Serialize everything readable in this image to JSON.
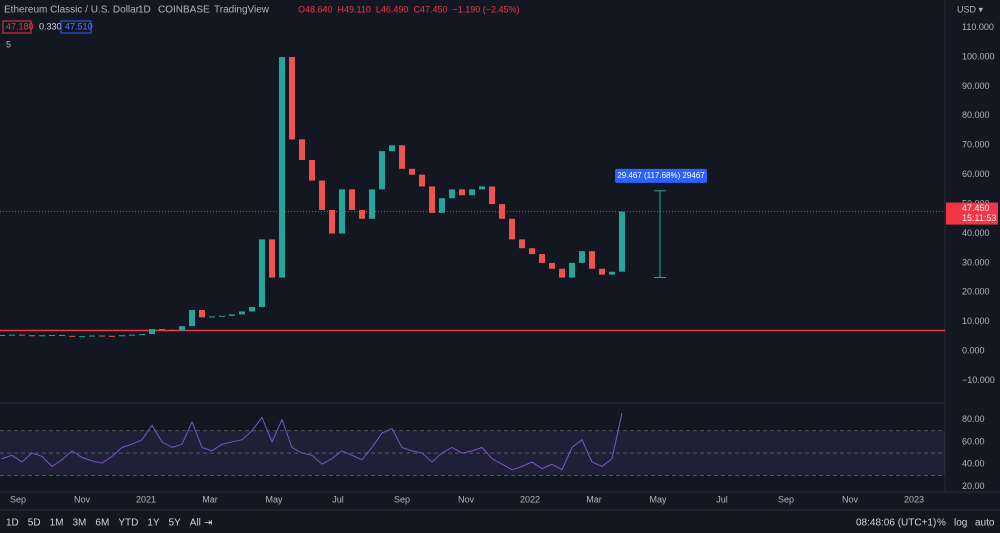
{
  "header": {
    "symbol": "Ethereum Classic / U.S. Dollar",
    "interval": "1D",
    "exchange": "COINBASE",
    "source": "TradingView",
    "ohlc": [
      "O48.640",
      "H49.110",
      "L46.490",
      "C47.450",
      "−1.190 (−2.45%)"
    ],
    "bid": "47.180",
    "spread": "0.330",
    "ask": "47.510",
    "indicator_count": "5",
    "currency": "USD ▾"
  },
  "chart_data": [
    {
      "type": "candlestick",
      "close": [
        5.5,
        5.6,
        5.4,
        5.3,
        5.4,
        5.5,
        5.2,
        5.0,
        5.1,
        5.3,
        5.2,
        5.1,
        5.4,
        5.6,
        5.8,
        7.5,
        7.2,
        7.0,
        8.5,
        14,
        11.5,
        11.8,
        12.0,
        12.5,
        13.5,
        15,
        38,
        25,
        100,
        72,
        65,
        58,
        48,
        40,
        55,
        48,
        45,
        55,
        68,
        70,
        62,
        60,
        56,
        47,
        52,
        55,
        53,
        55,
        56,
        50,
        45,
        38,
        35,
        33,
        30,
        28,
        25,
        30,
        34,
        28,
        26,
        27,
        47.45
      ],
      "colors": {
        "up": "#26a69a",
        "down": "#ef5350"
      },
      "ylim": [
        -17.3,
        119.4
      ],
      "yticks": [
        {
          "value": 110,
          "label": "110.000"
        },
        {
          "value": 100,
          "label": "100.000"
        },
        {
          "value": 90,
          "label": "90.000"
        },
        {
          "value": 80,
          "label": "80.000"
        },
        {
          "value": 70,
          "label": "70.000"
        },
        {
          "value": 60,
          "label": "60.000"
        },
        {
          "value": 50,
          "label": "50.000"
        },
        {
          "value": 40,
          "label": "40.000"
        },
        {
          "value": 30,
          "label": "30.000"
        },
        {
          "value": 20,
          "label": "20.000"
        },
        {
          "value": 10,
          "label": "10.000"
        },
        {
          "value": 0,
          "label": "0.000"
        },
        {
          "value": -10,
          "label": "−10.000"
        }
      ],
      "last_price": {
        "value": 47.45,
        "label": "47.450"
      },
      "countdown": "15:11:53",
      "hline": {
        "value": 7,
        "color": "#f23645"
      },
      "measure": {
        "from": 25.04,
        "to": 54.51,
        "label": "29.467 (117.68%) 29467"
      }
    },
    {
      "type": "line",
      "values": [
        45,
        48,
        42,
        50,
        47,
        38,
        44,
        52,
        46,
        43,
        41,
        47,
        55,
        58,
        62,
        75,
        60,
        55,
        58,
        78,
        55,
        52,
        58,
        60,
        62,
        70,
        82,
        60,
        80,
        55,
        50,
        48,
        40,
        45,
        52,
        48,
        44,
        55,
        68,
        72,
        55,
        52,
        50,
        42,
        50,
        55,
        50,
        52,
        55,
        45,
        40,
        35,
        38,
        42,
        36,
        40,
        35,
        55,
        62,
        42,
        38,
        45,
        86
      ],
      "color": "#7e57c2",
      "ylim": [
        15,
        95
      ],
      "yticks": [
        {
          "value": 80,
          "label": "80.00"
        },
        {
          "value": 60,
          "label": "60.00"
        },
        {
          "value": 40,
          "label": "40.00"
        },
        {
          "value": 20,
          "label": "20.00"
        }
      ],
      "bands": [
        30,
        70
      ],
      "midline": 50
    }
  ],
  "time_axis": [
    "Sep",
    "Nov",
    "2021",
    "Mar",
    "May",
    "Jul",
    "Sep",
    "Nov",
    "2022",
    "Mar",
    "May",
    "Jul",
    "Sep",
    "Nov",
    "2023"
  ],
  "toolbar": {
    "ranges": [
      "1D",
      "5D",
      "1M",
      "3M",
      "6M",
      "YTD",
      "1Y",
      "5Y",
      "All"
    ],
    "clock": "08:48:06 (UTC+1)",
    "options": [
      "%",
      "log",
      "auto"
    ]
  }
}
